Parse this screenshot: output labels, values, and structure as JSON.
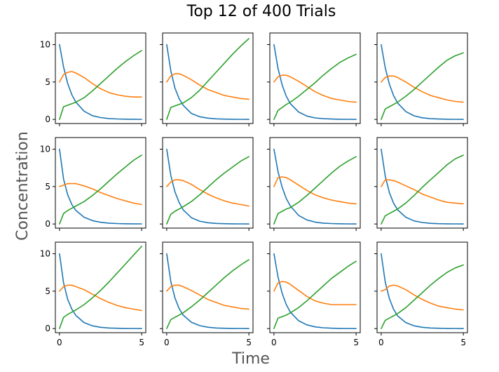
{
  "figure": {
    "title": "Top 12 of 400 Trials",
    "xlabel": "Time",
    "ylabel": "Concentration"
  },
  "colors": {
    "blue": "#1f77b4",
    "orange": "#ff7f0e",
    "green": "#2ca02c"
  },
  "chart_data": {
    "type": "line",
    "grid_layout": {
      "rows": 3,
      "cols": 4
    },
    "sharex": true,
    "sharey": true,
    "xlim": [
      -0.25,
      5.25
    ],
    "ylim": [
      -0.55,
      11.55
    ],
    "xticks": [
      0,
      5
    ],
    "xtick_labels": [
      "0",
      "5"
    ],
    "yticks": [
      0,
      5,
      10
    ],
    "ytick_labels": [
      "0",
      "5",
      "10"
    ],
    "grid": false,
    "legend": "none",
    "x": [
      0,
      0.25,
      0.5,
      0.75,
      1.0,
      1.5,
      2.0,
      2.5,
      3.0,
      3.5,
      4.0,
      4.5,
      5.0
    ],
    "panels": [
      {
        "series": [
          {
            "color": "blue",
            "values": [
              10.0,
              7.0,
              4.8,
              3.3,
              2.3,
              1.1,
              0.5,
              0.25,
              0.12,
              0.06,
              0.03,
              0.02,
              0.01
            ]
          },
          {
            "color": "orange",
            "values": [
              5.0,
              6.0,
              6.3,
              6.4,
              6.2,
              5.6,
              4.8,
              4.1,
              3.6,
              3.3,
              3.1,
              3.0,
              3.0
            ]
          },
          {
            "color": "green",
            "values": [
              0.0,
              1.7,
              1.9,
              2.1,
              2.3,
              2.9,
              3.8,
              4.8,
              5.8,
              6.8,
              7.7,
              8.5,
              9.2
            ]
          }
        ]
      },
      {
        "series": [
          {
            "color": "blue",
            "values": [
              10.0,
              6.5,
              4.2,
              2.8,
              1.9,
              0.8,
              0.36,
              0.17,
              0.08,
              0.04,
              0.02,
              0.01,
              0.0
            ]
          },
          {
            "color": "orange",
            "values": [
              5.0,
              5.8,
              6.1,
              6.1,
              5.9,
              5.3,
              4.6,
              4.0,
              3.6,
              3.2,
              3.0,
              2.8,
              2.7
            ]
          },
          {
            "color": "green",
            "values": [
              0.0,
              1.6,
              1.8,
              2.0,
              2.2,
              2.9,
              3.9,
              5.1,
              6.3,
              7.5,
              8.7,
              9.8,
              10.8
            ]
          }
        ]
      },
      {
        "series": [
          {
            "color": "blue",
            "values": [
              10.0,
              6.8,
              4.6,
              3.1,
              2.1,
              1.0,
              0.45,
              0.2,
              0.1,
              0.05,
              0.02,
              0.01,
              0.0
            ]
          },
          {
            "color": "orange",
            "values": [
              5.0,
              5.7,
              5.9,
              5.9,
              5.7,
              5.1,
              4.4,
              3.7,
              3.2,
              2.8,
              2.6,
              2.4,
              2.3
            ]
          },
          {
            "color": "green",
            "values": [
              0.0,
              1.2,
              1.6,
              2.0,
              2.3,
              3.1,
              4.0,
              4.9,
              5.9,
              6.8,
              7.6,
              8.2,
              8.7
            ]
          }
        ]
      },
      {
        "series": [
          {
            "color": "blue",
            "values": [
              10.0,
              6.9,
              4.7,
              3.2,
              2.2,
              1.05,
              0.48,
              0.22,
              0.1,
              0.05,
              0.02,
              0.01,
              0.0
            ]
          },
          {
            "color": "orange",
            "values": [
              5.0,
              5.6,
              5.8,
              5.8,
              5.6,
              5.0,
              4.3,
              3.7,
              3.2,
              2.9,
              2.6,
              2.4,
              2.3
            ]
          },
          {
            "color": "green",
            "values": [
              0.0,
              1.4,
              1.7,
              2.0,
              2.3,
              3.1,
              4.0,
              5.0,
              6.0,
              7.0,
              7.9,
              8.5,
              8.9
            ]
          }
        ]
      },
      {
        "series": [
          {
            "color": "blue",
            "values": [
              10.0,
              6.0,
              3.9,
              2.6,
              1.8,
              0.9,
              0.45,
              0.23,
              0.12,
              0.06,
              0.03,
              0.02,
              0.01
            ]
          },
          {
            "color": "orange",
            "values": [
              5.0,
              5.2,
              5.4,
              5.4,
              5.4,
              5.1,
              4.7,
              4.2,
              3.8,
              3.4,
              3.1,
              2.8,
              2.6
            ]
          },
          {
            "color": "green",
            "values": [
              0.0,
              1.4,
              1.8,
              2.1,
              2.4,
              3.0,
              3.8,
              4.7,
              5.7,
              6.7,
              7.6,
              8.5,
              9.2
            ]
          }
        ]
      },
      {
        "series": [
          {
            "color": "blue",
            "values": [
              10.0,
              6.5,
              4.3,
              2.9,
              1.9,
              0.85,
              0.38,
              0.17,
              0.08,
              0.04,
              0.02,
              0.01,
              0.0
            ]
          },
          {
            "color": "orange",
            "values": [
              5.0,
              5.6,
              5.9,
              5.9,
              5.8,
              5.3,
              4.6,
              4.0,
              3.5,
              3.1,
              2.8,
              2.6,
              2.4
            ]
          },
          {
            "color": "green",
            "values": [
              0.0,
              1.3,
              1.7,
              2.0,
              2.3,
              3.0,
              3.9,
              4.9,
              5.9,
              6.8,
              7.6,
              8.4,
              9.0
            ]
          }
        ]
      },
      {
        "series": [
          {
            "color": "blue",
            "values": [
              10.0,
              7.0,
              4.9,
              3.4,
              2.4,
              1.15,
              0.55,
              0.26,
              0.12,
              0.06,
              0.03,
              0.01,
              0.0
            ]
          },
          {
            "color": "orange",
            "values": [
              5.0,
              6.2,
              6.3,
              6.2,
              5.9,
              5.2,
              4.5,
              3.9,
              3.5,
              3.2,
              3.0,
              2.8,
              2.7
            ]
          },
          {
            "color": "green",
            "values": [
              0.0,
              1.4,
              1.7,
              2.0,
              2.2,
              2.9,
              3.8,
              4.8,
              5.8,
              6.8,
              7.7,
              8.4,
              9.0
            ]
          }
        ]
      },
      {
        "series": [
          {
            "color": "blue",
            "values": [
              10.0,
              6.4,
              4.2,
              2.8,
              1.9,
              0.9,
              0.42,
              0.2,
              0.09,
              0.04,
              0.02,
              0.01,
              0.0
            ]
          },
          {
            "color": "orange",
            "values": [
              5.0,
              5.9,
              5.9,
              5.8,
              5.6,
              5.1,
              4.6,
              4.0,
              3.6,
              3.2,
              2.9,
              2.8,
              2.7
            ]
          },
          {
            "color": "green",
            "values": [
              0.0,
              1.1,
              1.4,
              1.7,
              2.0,
              2.8,
              3.8,
              4.9,
              5.9,
              6.9,
              7.9,
              8.7,
              9.2
            ]
          }
        ]
      },
      {
        "series": [
          {
            "color": "blue",
            "values": [
              10.0,
              6.1,
              3.9,
              2.6,
              1.75,
              0.8,
              0.37,
              0.17,
              0.08,
              0.04,
              0.02,
              0.01,
              0.0
            ]
          },
          {
            "color": "orange",
            "values": [
              5.0,
              5.6,
              5.8,
              5.8,
              5.6,
              5.2,
              4.6,
              4.0,
              3.5,
              3.1,
              2.8,
              2.6,
              2.4
            ]
          },
          {
            "color": "green",
            "values": [
              0.0,
              1.5,
              1.9,
              2.2,
              2.5,
              3.2,
              4.1,
              5.1,
              6.2,
              7.4,
              8.6,
              9.8,
              11.0
            ]
          }
        ]
      },
      {
        "series": [
          {
            "color": "blue",
            "values": [
              10.0,
              6.3,
              4.1,
              2.7,
              1.8,
              0.85,
              0.4,
              0.18,
              0.08,
              0.04,
              0.02,
              0.01,
              0.0
            ]
          },
          {
            "color": "orange",
            "values": [
              5.0,
              5.6,
              5.8,
              5.8,
              5.6,
              5.1,
              4.5,
              3.9,
              3.5,
              3.1,
              2.9,
              2.7,
              2.6
            ]
          },
          {
            "color": "green",
            "values": [
              0.0,
              1.2,
              1.5,
              1.8,
              2.1,
              2.9,
              3.8,
              4.8,
              5.8,
              6.8,
              7.7,
              8.5,
              9.2
            ]
          }
        ]
      },
      {
        "series": [
          {
            "color": "blue",
            "values": [
              10.0,
              6.9,
              4.7,
              3.2,
              2.2,
              1.05,
              0.5,
              0.23,
              0.11,
              0.05,
              0.02,
              0.01,
              0.0
            ]
          },
          {
            "color": "orange",
            "values": [
              5.0,
              6.1,
              6.3,
              6.2,
              5.9,
              5.1,
              4.3,
              3.7,
              3.4,
              3.2,
              3.2,
              3.2,
              3.2
            ]
          },
          {
            "color": "green",
            "values": [
              0.0,
              1.4,
              1.6,
              1.8,
              2.1,
              2.8,
              3.7,
              4.7,
              5.7,
              6.7,
              7.5,
              8.3,
              9.0
            ]
          }
        ]
      },
      {
        "series": [
          {
            "color": "blue",
            "values": [
              10.0,
              6.2,
              4.0,
              2.6,
              1.7,
              0.8,
              0.37,
              0.17,
              0.08,
              0.04,
              0.02,
              0.01,
              0.0
            ]
          },
          {
            "color": "orange",
            "values": [
              5.0,
              5.2,
              5.7,
              5.8,
              5.7,
              5.2,
              4.5,
              3.9,
              3.4,
              3.0,
              2.8,
              2.6,
              2.5
            ]
          },
          {
            "color": "green",
            "values": [
              0.0,
              1.1,
              1.4,
              1.7,
              2.0,
              2.8,
              3.8,
              4.8,
              5.8,
              6.7,
              7.5,
              8.1,
              8.5
            ]
          }
        ]
      }
    ]
  }
}
